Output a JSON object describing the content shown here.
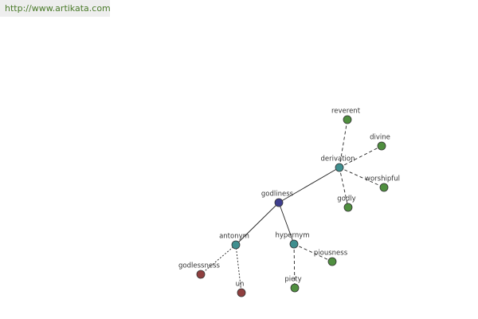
{
  "header": {
    "url": "http://www.artikata.com"
  },
  "nodes": [
    {
      "label": "godliness",
      "color": "#3f3f8f"
    },
    {
      "label": "derivation",
      "color": "#3f8f8f"
    },
    {
      "label": "reverent",
      "color": "#4f8f3f"
    },
    {
      "label": "divine",
      "color": "#4f8f3f"
    },
    {
      "label": "worshipful",
      "color": "#4f8f3f"
    },
    {
      "label": "godly",
      "color": "#4f8f3f"
    },
    {
      "label": "antonym",
      "color": "#3f8f8f"
    },
    {
      "label": "hypernym",
      "color": "#3f8f8f"
    },
    {
      "label": "godlessness",
      "color": "#8f3f3f"
    },
    {
      "label": "un",
      "color": "#8f3f3f"
    },
    {
      "label": "piousness",
      "color": "#4f8f3f"
    },
    {
      "label": "piety",
      "color": "#4f8f3f"
    }
  ]
}
